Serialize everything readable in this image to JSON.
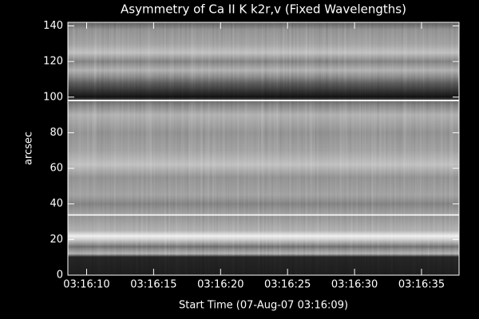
{
  "chart_data": {
    "type": "image",
    "title": "Asymmetry of Ca II K k2r,v (Fixed Wavelengths)",
    "x_label": "Start Time (07-Aug-07 03:16:09)",
    "y_label": "arcsec",
    "xlim": [
      8.6,
      37.8
    ],
    "xticks": [
      {
        "value": 10,
        "label": "03:16:10"
      },
      {
        "value": 15,
        "label": "03:16:15"
      },
      {
        "value": 20,
        "label": "03:16:20"
      },
      {
        "value": 25,
        "label": "03:16:25"
      },
      {
        "value": 30,
        "label": "03:16:30"
      },
      {
        "value": 35,
        "label": "03:16:35"
      }
    ],
    "ylim": [
      0,
      142
    ],
    "yticks": [
      0,
      20,
      40,
      60,
      80,
      100,
      120,
      140
    ]
  }
}
